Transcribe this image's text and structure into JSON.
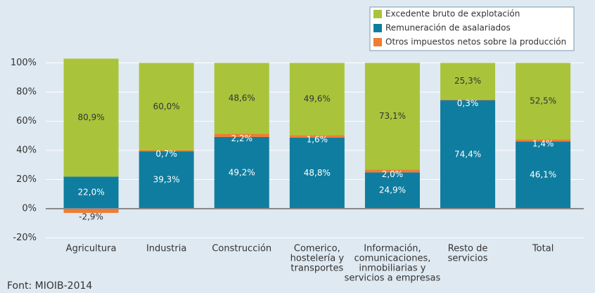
{
  "chart_data": {
    "type": "stacked_bar",
    "categories": [
      [
        "Agricultura"
      ],
      [
        "Industria"
      ],
      [
        "Construcción"
      ],
      [
        "Comerico,",
        "hostelería y",
        "transportes"
      ],
      [
        "Información,",
        "comunicaciones,",
        "inmobiliarias y",
        "servicios a empresas"
      ],
      [
        "Resto de",
        "servicios"
      ],
      [
        "Total"
      ]
    ],
    "series": [
      {
        "name": "Remuneración de asalariados",
        "color": "#0f7d9f",
        "values": [
          22.0,
          39.3,
          49.2,
          48.8,
          24.9,
          74.4,
          46.1
        ],
        "value_labels": [
          "22,0%",
          "39,3%",
          "49,2%",
          "48,8%",
          "24,9%",
          "74,4%",
          "46,1%"
        ]
      },
      {
        "name": "Otros impuestos netos sobre la producción",
        "color": "#f07c32",
        "values": [
          -2.9,
          0.7,
          2.2,
          1.6,
          2.0,
          0.3,
          1.4
        ],
        "value_labels": [
          "-2,9%",
          "0,7%",
          "2,2%",
          "1,6%",
          "2,0%",
          "0,3%",
          "1,4%"
        ]
      },
      {
        "name": "Excedente bruto de explotación",
        "color": "#a9c43b",
        "values": [
          80.9,
          60.0,
          48.6,
          49.6,
          73.1,
          25.3,
          52.5
        ],
        "value_labels": [
          "80,9%",
          "60,0%",
          "48,6%",
          "49,6%",
          "73,1%",
          "25,3%",
          "52,5%"
        ]
      }
    ],
    "ylim": [
      -20,
      100
    ],
    "yticks": [
      {
        "value": -20,
        "label": "-20%"
      },
      {
        "value": 0,
        "label": "0%"
      },
      {
        "value": 20,
        "label": "20%"
      },
      {
        "value": 40,
        "label": "40%"
      },
      {
        "value": 60,
        "label": "60%"
      },
      {
        "value": 80,
        "label": "80%"
      },
      {
        "value": 100,
        "label": "100%"
      }
    ],
    "grid": true,
    "legend": "top-right",
    "source": "Font: MIOIB-2014"
  }
}
